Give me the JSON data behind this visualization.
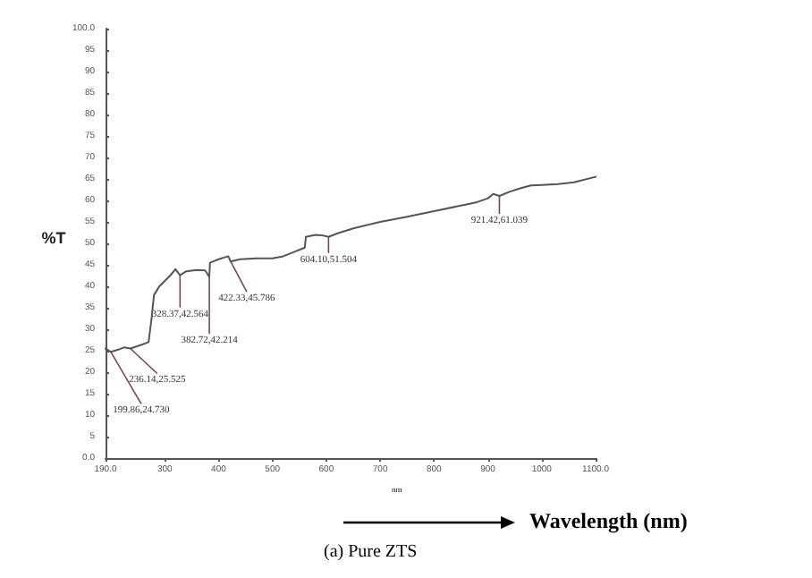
{
  "chart_data": {
    "type": "line",
    "xlabel": "Wavelength (nm)",
    "ylabel": "%T",
    "color": "#555555",
    "x": [
      190,
      199.86,
      215,
      225,
      236.14,
      255,
      270,
      275,
      280,
      290,
      310,
      320,
      328.37,
      340,
      360,
      375,
      382.72,
      384,
      400,
      418,
      422.33,
      440,
      470,
      500,
      520,
      540,
      560,
      562,
      580,
      595,
      604.1,
      620,
      650,
      700,
      750,
      800,
      850,
      880,
      900,
      910,
      921.42,
      940,
      960,
      980,
      1000,
      1030,
      1060,
      1100
    ],
    "values": [
      25.5,
      24.73,
      25.3,
      25.8,
      25.525,
      26.3,
      27,
      32,
      38,
      40,
      42.5,
      44,
      42.564,
      43.5,
      43.8,
      43.7,
      42.214,
      45.5,
      46.3,
      47,
      45.786,
      46.3,
      46.5,
      46.5,
      47,
      48,
      49,
      51.5,
      52,
      51.8,
      51.504,
      52.3,
      53.5,
      55,
      56.2,
      57.5,
      58.8,
      59.6,
      60.5,
      61.5,
      61.039,
      62,
      62.8,
      63.5,
      63.6,
      63.8,
      64.2,
      65.5
    ],
    "xlim": [
      190,
      1100
    ],
    "xticks": [
      {
        "value": 190,
        "label": "190.0"
      },
      300,
      400,
      500,
      600,
      700,
      800,
      900,
      1000,
      {
        "value": 1100,
        "label": "1100.0"
      }
    ],
    "ylim": [
      0,
      100
    ],
    "yticks": [
      {
        "value": 0,
        "label": "0.0"
      },
      5,
      10,
      15,
      20,
      25,
      30,
      35,
      40,
      45,
      50,
      55,
      60,
      65,
      70,
      75,
      80,
      85,
      90,
      95,
      {
        "value": 100,
        "label": "100.0"
      }
    ],
    "grid": false,
    "marker": "none",
    "line_style": "solid",
    "annotations": [
      {
        "text": "199.86,24.730",
        "x": 199.86,
        "y": 24.73
      },
      {
        "text": "236.14,25.525",
        "x": 236.14,
        "y": 25.525
      },
      {
        "text": "328.37,42.564",
        "x": 328.37,
        "y": 42.564
      },
      {
        "text": "382.72,42.214",
        "x": 382.72,
        "y": 42.214
      },
      {
        "text": "422.33,45.786",
        "x": 422.33,
        "y": 45.786
      },
      {
        "text": "604.10,51.504",
        "x": 604.1,
        "y": 51.504
      },
      {
        "text": "921.42,61.039",
        "x": 921.42,
        "y": 61.039
      },
      "nm",
      "(a) Pure ZTS"
    ]
  }
}
